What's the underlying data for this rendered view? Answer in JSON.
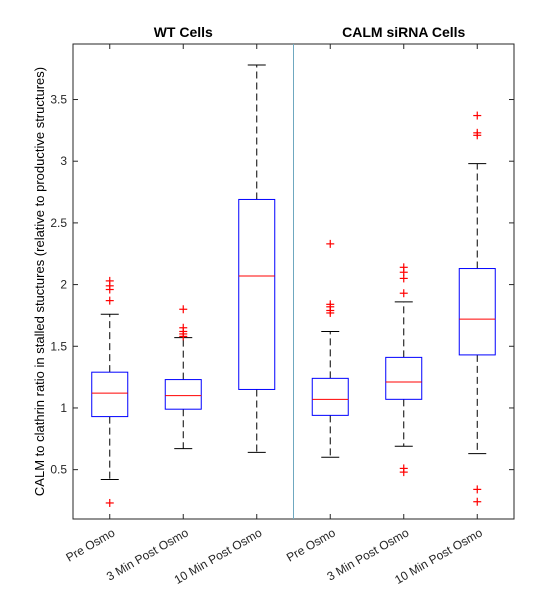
{
  "chart_data": {
    "type": "boxplot",
    "ylabel": "CALM to clathrin ratio in stalled stuctures (relative to productive structures)",
    "ylim": [
      0.1,
      3.95
    ],
    "yticks": [
      0.5,
      1,
      1.5,
      2,
      2.5,
      3,
      3.5
    ],
    "ytick_labels": [
      "0.5",
      "1",
      "1.5",
      "2",
      "2.5",
      "3",
      "3.5"
    ],
    "groups": [
      {
        "title": "WT Cells"
      },
      {
        "title": "CALM siRNA Cells"
      }
    ],
    "categories": [
      "Pre Osmo",
      "3 Min Post Osmo",
      "10 Min Post Osmo",
      "Pre Osmo",
      "3 Min Post Osmo",
      "10 Min Post Osmo"
    ],
    "boxes": [
      {
        "group": 0,
        "q1": 0.93,
        "median": 1.12,
        "q3": 1.29,
        "whisker_low": 0.42,
        "whisker_high": 1.76,
        "outliers": [
          0.23,
          1.87,
          1.96,
          1.99,
          2.03
        ]
      },
      {
        "group": 0,
        "q1": 0.99,
        "median": 1.1,
        "q3": 1.23,
        "whisker_low": 0.67,
        "whisker_high": 1.57,
        "outliers": [
          1.58,
          1.6,
          1.62,
          1.65,
          1.8
        ]
      },
      {
        "group": 0,
        "q1": 1.15,
        "median": 2.07,
        "q3": 2.69,
        "whisker_low": 0.64,
        "whisker_high": 3.78,
        "outliers": []
      },
      {
        "group": 1,
        "q1": 0.94,
        "median": 1.07,
        "q3": 1.24,
        "whisker_low": 0.6,
        "whisker_high": 1.62,
        "outliers": [
          1.77,
          1.79,
          1.82,
          1.84,
          2.33
        ]
      },
      {
        "group": 1,
        "q1": 1.07,
        "median": 1.21,
        "q3": 1.41,
        "whisker_low": 0.69,
        "whisker_high": 1.86,
        "outliers": [
          0.48,
          0.51,
          1.93,
          2.05,
          2.1,
          2.14
        ]
      },
      {
        "group": 1,
        "q1": 1.43,
        "median": 1.72,
        "q3": 2.13,
        "whisker_low": 0.63,
        "whisker_high": 2.98,
        "outliers": [
          0.24,
          0.34,
          3.21,
          3.23,
          3.37
        ]
      }
    ],
    "colors": {
      "box": "#0000ff",
      "median": "#ff0000",
      "whisker": "#000000",
      "outlier": "#ff0000",
      "separator": "#6fa8c0",
      "axis": "#262626"
    },
    "grid": false
  }
}
